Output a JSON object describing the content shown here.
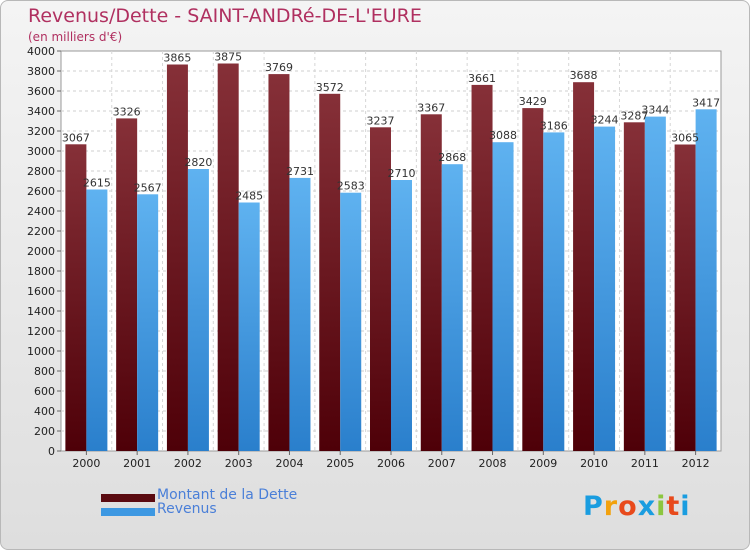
{
  "header": {
    "title": "Revenus/Dette - SAINT-ANDRé-DE-L'EURE",
    "subtitle": "(en milliers d'€)"
  },
  "colors": {
    "dette": "#6b0f16",
    "revenus": "#3d98e2",
    "title": "#b03060",
    "legend_text": "#4a7fd8"
  },
  "legend": {
    "items": [
      {
        "label": "Montant de la Dette",
        "color": "#6b0f16"
      },
      {
        "label": "Revenus",
        "color": "#3d98e2"
      }
    ]
  },
  "logo": {
    "letters": [
      "P",
      "r",
      "o",
      "x",
      "i",
      "t",
      "i"
    ],
    "colors": [
      "#1a9de0",
      "#f2a10d",
      "#e84a1c",
      "#1a9de0",
      "#8cc63f",
      "#e84a1c",
      "#1a9de0"
    ]
  },
  "chart_data": {
    "type": "bar",
    "categories": [
      "2000",
      "2001",
      "2002",
      "2003",
      "2004",
      "2005",
      "2006",
      "2007",
      "2008",
      "2009",
      "2010",
      "2011",
      "2012"
    ],
    "series": [
      {
        "name": "Montant de la Dette",
        "values": [
          3067,
          3326,
          3865,
          3875,
          3769,
          3572,
          3237,
          3367,
          3661,
          3429,
          3688,
          3287,
          3065
        ]
      },
      {
        "name": "Revenus",
        "values": [
          2615,
          2567,
          2820,
          2485,
          2731,
          2583,
          2710,
          2868,
          3088,
          3186,
          3244,
          3344,
          3417
        ]
      }
    ],
    "ylim": [
      0,
      4000
    ],
    "ytick_step": 200,
    "grid": true
  }
}
